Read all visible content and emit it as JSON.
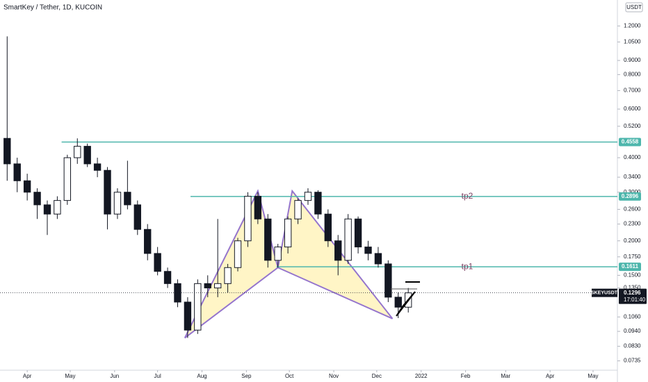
{
  "chart_data": {
    "type": "candlestick",
    "title": "SmartKey / Tether, 1D, KUCOIN",
    "currency": "USDT",
    "symbol": "SKEYUSDT",
    "price": 0.1296,
    "countdown": "17:01:40",
    "log_scale": true,
    "xlim": [
      71,
      502
    ],
    "ylim": [
      0.068,
      1.49
    ],
    "xticks": [
      {
        "value": 90,
        "label": "Apr"
      },
      {
        "value": 120,
        "label": "May"
      },
      {
        "value": 151,
        "label": "Jun"
      },
      {
        "value": 181,
        "label": "Jul"
      },
      {
        "value": 212,
        "label": "Aug"
      },
      {
        "value": 243,
        "label": "Sep"
      },
      {
        "value": 273,
        "label": "Oct"
      },
      {
        "value": 304,
        "label": "Nov"
      },
      {
        "value": 334,
        "label": "Dec"
      },
      {
        "value": 365,
        "label": "2022"
      },
      {
        "value": 396,
        "label": "Feb"
      },
      {
        "value": 424,
        "label": "Mar"
      },
      {
        "value": 455,
        "label": "Apr"
      },
      {
        "value": 485,
        "label": "May"
      }
    ],
    "yticks": [
      {
        "value": 1.2,
        "label": "1.2000"
      },
      {
        "value": 1.05,
        "label": "1.0500"
      },
      {
        "value": 0.9,
        "label": "0.9000"
      },
      {
        "value": 0.8,
        "label": "0.8000"
      },
      {
        "value": 0.7,
        "label": "0.7000"
      },
      {
        "value": 0.6,
        "label": "0.6000"
      },
      {
        "value": 0.52,
        "label": "0.5200"
      },
      {
        "value": 0.4,
        "label": "0.4000"
      },
      {
        "value": 0.34,
        "label": "0.3400"
      },
      {
        "value": 0.3,
        "label": "0.3000"
      },
      {
        "value": 0.26,
        "label": "0.2600"
      },
      {
        "value": 0.23,
        "label": "0.2300"
      },
      {
        "value": 0.2,
        "label": "0.2000"
      },
      {
        "value": 0.175,
        "label": "0.1750"
      },
      {
        "value": 0.15,
        "label": "0.1500"
      },
      {
        "value": 0.135,
        "label": "0.1350"
      },
      {
        "value": 0.106,
        "label": "0.1060"
      },
      {
        "value": 0.094,
        "label": "0.0940"
      },
      {
        "value": 0.083,
        "label": "0.0830"
      },
      {
        "value": 0.0735,
        "label": "0.0735"
      }
    ],
    "x": [
      76,
      83,
      90,
      97,
      104,
      111,
      118,
      125,
      132,
      139,
      146,
      153,
      160,
      167,
      174,
      181,
      188,
      195,
      202,
      209,
      216,
      223,
      230,
      237,
      244,
      251,
      258,
      265,
      272,
      279,
      286,
      293,
      300,
      307,
      314,
      321,
      328,
      335,
      342,
      349,
      356
    ],
    "open": [
      0.47,
      0.38,
      0.33,
      0.3,
      0.27,
      0.25,
      0.28,
      0.4,
      0.44,
      0.38,
      0.36,
      0.25,
      0.3,
      0.27,
      0.22,
      0.18,
      0.155,
      0.14,
      0.12,
      0.095,
      0.14,
      0.135,
      0.14,
      0.16,
      0.2,
      0.29,
      0.24,
      0.17,
      0.19,
      0.24,
      0.28,
      0.3,
      0.25,
      0.2,
      0.17,
      0.24,
      0.19,
      0.18,
      0.165,
      0.125,
      0.115
    ],
    "high": [
      1.1,
      0.4,
      0.35,
      0.31,
      0.28,
      0.29,
      0.41,
      0.47,
      0.45,
      0.4,
      0.37,
      0.31,
      0.39,
      0.28,
      0.23,
      0.19,
      0.16,
      0.145,
      0.125,
      0.145,
      0.15,
      0.24,
      0.165,
      0.205,
      0.3,
      0.3,
      0.25,
      0.195,
      0.245,
      0.285,
      0.31,
      0.305,
      0.26,
      0.21,
      0.25,
      0.245,
      0.2,
      0.19,
      0.17,
      0.13,
      0.135
    ],
    "low": [
      0.33,
      0.3,
      0.28,
      0.24,
      0.21,
      0.24,
      0.27,
      0.38,
      0.37,
      0.34,
      0.22,
      0.24,
      0.26,
      0.21,
      0.17,
      0.15,
      0.135,
      0.115,
      0.089,
      0.092,
      0.125,
      0.125,
      0.13,
      0.155,
      0.19,
      0.23,
      0.16,
      0.16,
      0.18,
      0.23,
      0.27,
      0.24,
      0.19,
      0.15,
      0.165,
      0.18,
      0.17,
      0.16,
      0.12,
      0.105,
      0.11
    ],
    "close": [
      0.38,
      0.33,
      0.3,
      0.27,
      0.25,
      0.28,
      0.4,
      0.44,
      0.38,
      0.36,
      0.25,
      0.3,
      0.27,
      0.22,
      0.18,
      0.155,
      0.14,
      0.12,
      0.095,
      0.14,
      0.135,
      0.14,
      0.16,
      0.2,
      0.29,
      0.24,
      0.17,
      0.19,
      0.24,
      0.28,
      0.3,
      0.25,
      0.2,
      0.17,
      0.24,
      0.19,
      0.18,
      0.165,
      0.125,
      0.115,
      0.1296
    ],
    "levels": [
      {
        "value": 0.4558,
        "from": 114
      },
      {
        "value": 0.2896,
        "from": 204,
        "label": "tp2"
      },
      {
        "value": 0.1611,
        "from": 264,
        "label": "tp1"
      }
    ],
    "level_color": "#4db6ac",
    "pattern": {
      "x": [
        200,
        251,
        265,
        275,
        345
      ],
      "y": [
        0.089,
        0.303,
        0.16,
        0.303,
        0.1045
      ],
      "color": "#9575cd",
      "fill": "#fff3b8"
    }
  }
}
